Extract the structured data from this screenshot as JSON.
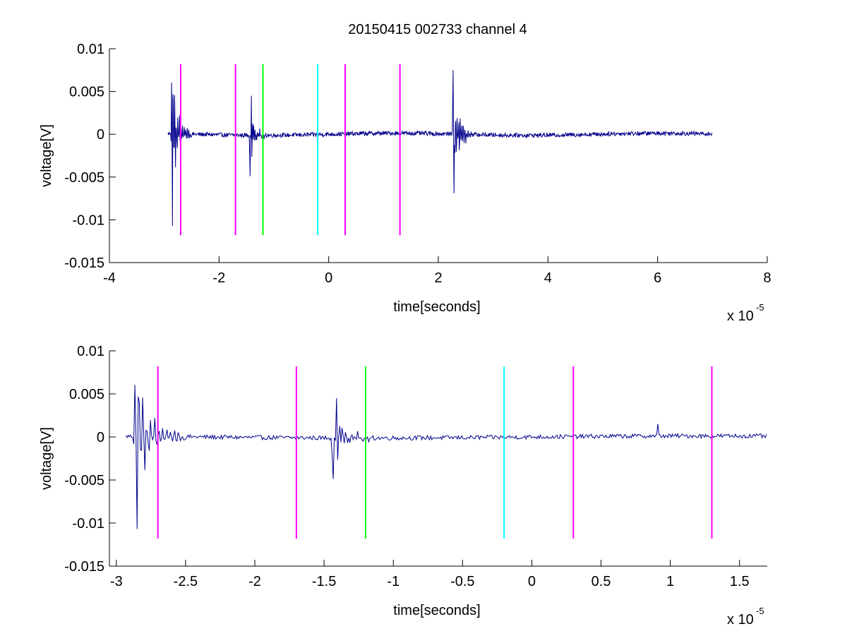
{
  "figure": {
    "title": "20150415 002733 channel 4",
    "background": "#ffffff",
    "trace_color": "#00008b"
  },
  "chart_data": [
    {
      "type": "line",
      "title": "20150415 002733 channel 4",
      "xlabel": "time[seconds]",
      "ylabel": "voltage[V]",
      "x_exponent": "x 10",
      "x_exponent_power": "-5",
      "xlim": [
        -4,
        8
      ],
      "ylim": [
        -0.015,
        0.01
      ],
      "xticks": [
        -4,
        -2,
        0,
        2,
        4,
        6,
        8
      ],
      "xtick_labels": [
        "-4",
        "-2",
        "0",
        "2",
        "4",
        "6",
        "8"
      ],
      "yticks": [
        0.01,
        0.005,
        0,
        -0.005,
        -0.01,
        -0.015
      ],
      "ytick_labels": [
        "0.01",
        "0.005",
        "0",
        "-0.005",
        "-0.01",
        "-0.015"
      ],
      "grid": false,
      "series": [
        {
          "color": "#00008b",
          "x_range": [
            -2.93,
            7.0
          ],
          "bursts": [
            {
              "t0": -2.88,
              "amp": 0.0085,
              "dur": 0.38,
              "freq": 9.0
            },
            {
              "t0": -1.45,
              "amp": 0.0045,
              "dur": 0.32,
              "freq": 8.0
            },
            {
              "t0": 2.25,
              "amp": 0.0072,
              "dur": 0.4,
              "freq": 9.0
            }
          ],
          "extremes": [
            {
              "x": -2.85,
              "y": -0.0107
            },
            {
              "x": -2.84,
              "y": 0.0047
            },
            {
              "x": -1.41,
              "y": 0.0045
            },
            {
              "x": -1.43,
              "y": -0.0049
            },
            {
              "x": 2.27,
              "y": 0.0075
            },
            {
              "x": 2.29,
              "y": -0.0069
            }
          ],
          "noise": 0.00025
        }
      ],
      "markers": [
        {
          "x": -2.7,
          "color": "#ff00ff",
          "ymin": -0.0118,
          "ymax": 0.0082
        },
        {
          "x": -1.7,
          "color": "#ff00ff",
          "ymin": -0.0118,
          "ymax": 0.0082
        },
        {
          "x": -1.2,
          "color": "#00ff00",
          "ymin": -0.0118,
          "ymax": 0.0082
        },
        {
          "x": -0.2,
          "color": "#00ffff",
          "ymin": -0.0118,
          "ymax": 0.0082
        },
        {
          "x": 0.3,
          "color": "#ff00ff",
          "ymin": -0.0118,
          "ymax": 0.0082
        },
        {
          "x": 1.3,
          "color": "#ff00ff",
          "ymin": -0.0118,
          "ymax": 0.0082
        }
      ]
    },
    {
      "type": "line",
      "title": "",
      "xlabel": "time[seconds]",
      "ylabel": "voltage[V]",
      "x_exponent": "x 10",
      "x_exponent_power": "-5",
      "xlim": [
        -3.05,
        1.7
      ],
      "ylim": [
        -0.015,
        0.01
      ],
      "xticks": [
        -3,
        -2.5,
        -2,
        -1.5,
        -1,
        -0.5,
        0,
        0.5,
        1,
        1.5
      ],
      "xtick_labels": [
        "-3",
        "-2.5",
        "-2",
        "-1.5",
        "-1",
        "-0.5",
        "0",
        "0.5",
        "1",
        "1.5"
      ],
      "yticks": [
        0.01,
        0.005,
        0,
        -0.005,
        -0.01,
        -0.015
      ],
      "ytick_labels": [
        "0.01",
        "0.005",
        "0",
        "-0.005",
        "-0.01",
        "-0.015"
      ],
      "grid": false,
      "series": [
        {
          "color": "#00008b",
          "x_range": [
            -2.93,
            1.7
          ],
          "bursts": [
            {
              "t0": -2.88,
              "amp": 0.0085,
              "dur": 0.38,
              "freq": 9.0
            },
            {
              "t0": -1.45,
              "amp": 0.0045,
              "dur": 0.32,
              "freq": 8.0
            }
          ],
          "extremes": [
            {
              "x": -2.85,
              "y": -0.0107
            },
            {
              "x": -2.84,
              "y": 0.0047
            },
            {
              "x": -1.41,
              "y": 0.0045
            },
            {
              "x": -1.43,
              "y": -0.0049
            },
            {
              "x": 0.91,
              "y": 0.0015
            }
          ],
          "noise": 0.00025
        }
      ],
      "markers": [
        {
          "x": -2.7,
          "color": "#ff00ff",
          "ymin": -0.0118,
          "ymax": 0.0082
        },
        {
          "x": -1.7,
          "color": "#ff00ff",
          "ymin": -0.0118,
          "ymax": 0.0082
        },
        {
          "x": -1.2,
          "color": "#00ff00",
          "ymin": -0.0118,
          "ymax": 0.0082
        },
        {
          "x": -0.2,
          "color": "#00ffff",
          "ymin": -0.0118,
          "ymax": 0.0082
        },
        {
          "x": 0.3,
          "color": "#ff00ff",
          "ymin": -0.0118,
          "ymax": 0.0082
        },
        {
          "x": 1.3,
          "color": "#ff00ff",
          "ymin": -0.0118,
          "ymax": 0.0082
        }
      ]
    }
  ]
}
